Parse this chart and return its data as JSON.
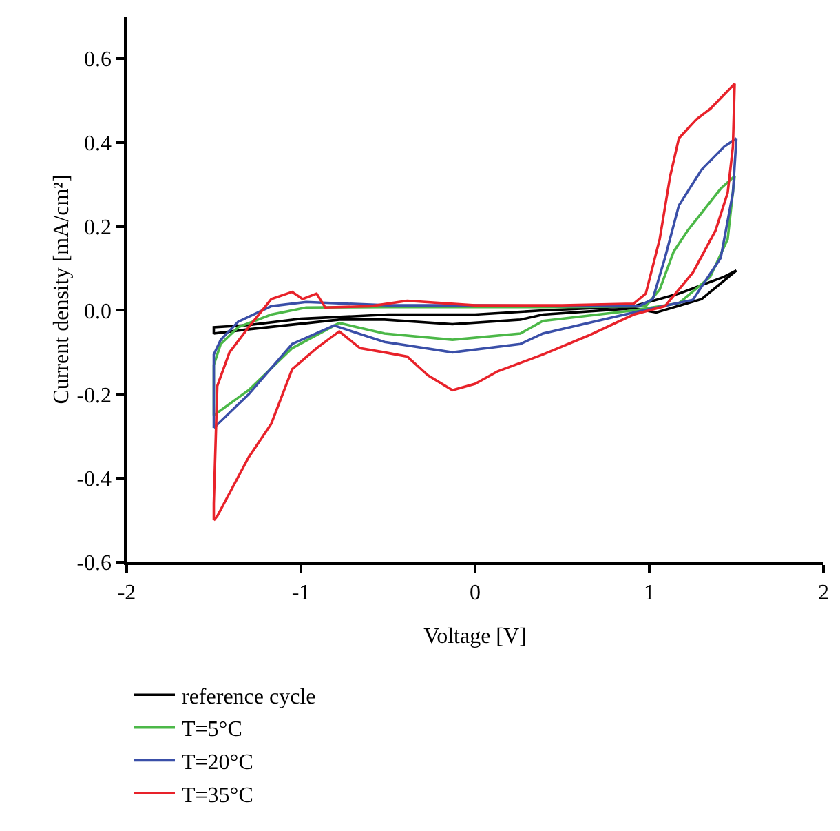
{
  "chart_data": {
    "type": "line",
    "xlabel": "Voltage [V]",
    "ylabel": "Current density [mA/cm²]",
    "xlim": [
      -2,
      2
    ],
    "ylim": [
      -0.6,
      0.7
    ],
    "xticks": [
      -2,
      -1,
      0,
      1,
      2
    ],
    "yticks": [
      -0.6,
      -0.4,
      -0.2,
      {
        "value": 0,
        "label": "0.0"
      },
      0.2,
      0.4,
      0.6
    ],
    "grid": false,
    "legend": "bottom",
    "marker": "none",
    "line_style": "solid",
    "series": [
      {
        "name": "reference cycle",
        "color": "#000000",
        "x": [
          -1.5,
          -1.3,
          -0.78,
          -0.52,
          -0.13,
          0.26,
          0.39,
          0.91,
          1.04,
          1.3,
          1.5
        ],
        "values": [
          -0.055,
          -0.045,
          -0.022,
          -0.022,
          -0.033,
          -0.022,
          -0.01,
          0.005,
          -0.005,
          0.027,
          0.095
        ]
      },
      {
        "color": "#000000",
        "x": [
          1.5,
          1.43,
          1.3,
          1.17,
          0.91,
          0.39,
          0,
          -0.5,
          -1.0,
          -1.3,
          -1.5,
          -1.5
        ],
        "values": [
          0.095,
          0.08,
          0.06,
          0.04,
          0.01,
          0.0,
          -0.01,
          -0.01,
          -0.02,
          -0.035,
          -0.04,
          -0.055
        ]
      },
      {
        "name": "T=5°C",
        "color": "#4cb848",
        "x": [
          -1.5,
          -1.3,
          -1.05,
          -0.78,
          -0.52,
          -0.13,
          0.26,
          0.39,
          0.91,
          1.17,
          1.35,
          1.45,
          1.49
        ],
        "values": [
          -0.25,
          -0.19,
          -0.09,
          -0.03,
          -0.055,
          -0.07,
          -0.055,
          -0.025,
          0.0,
          0.017,
          0.08,
          0.17,
          0.32
        ]
      },
      {
        "color": "#4cb848",
        "x": [
          1.49,
          1.41,
          1.22,
          1.14,
          1.06,
          0.98,
          0.5,
          0,
          -0.5,
          -0.97,
          -1.17,
          -1.36,
          -1.46,
          -1.5,
          -1.5
        ],
        "values": [
          0.32,
          0.29,
          0.19,
          0.14,
          0.05,
          0.01,
          0.008,
          0.008,
          0.008,
          0.007,
          -0.01,
          -0.04,
          -0.08,
          -0.13,
          -0.25
        ]
      },
      {
        "name": "T=20°C",
        "color": "#3a4fa8",
        "x": [
          -1.5,
          -1.3,
          -1.05,
          -0.81,
          -0.52,
          -0.13,
          0.26,
          0.39,
          0.91,
          1.25,
          1.41,
          1.48,
          1.5
        ],
        "values": [
          -0.28,
          -0.2,
          -0.08,
          -0.036,
          -0.075,
          -0.1,
          -0.08,
          -0.055,
          -0.005,
          0.025,
          0.125,
          0.28,
          0.41
        ]
      },
      {
        "color": "#3a4fa8",
        "x": [
          1.5,
          1.43,
          1.3,
          1.17,
          1.09,
          1.02,
          0.94,
          0.5,
          0,
          -0.5,
          -0.97,
          -1.17,
          -1.36,
          -1.46,
          -1.5,
          -1.5,
          -1.5
        ],
        "values": [
          0.41,
          0.39,
          0.335,
          0.25,
          0.125,
          0.027,
          0.01,
          0.01,
          0.012,
          0.012,
          0.02,
          0.01,
          -0.027,
          -0.07,
          -0.105,
          -0.2,
          -0.28
        ]
      },
      {
        "name": "T=35°C",
        "color": "#e8222a",
        "x": [
          -1.5,
          -1.48,
          -1.3,
          -1.17,
          -1.05,
          -0.91,
          -0.78,
          -0.66,
          -0.52,
          -0.39,
          -0.27,
          -0.13,
          0,
          0.13,
          0.39,
          0.65,
          0.91,
          1.09,
          1.25,
          1.38,
          1.45,
          1.48,
          1.49
        ],
        "values": [
          -0.5,
          -0.49,
          -0.35,
          -0.27,
          -0.14,
          -0.09,
          -0.05,
          -0.09,
          -0.1,
          -0.11,
          -0.155,
          -0.19,
          -0.175,
          -0.145,
          -0.105,
          -0.06,
          -0.01,
          0.01,
          0.09,
          0.19,
          0.28,
          0.39,
          0.54
        ]
      },
      {
        "color": "#e8222a",
        "x": [
          1.49,
          1.35,
          1.27,
          1.17,
          1.12,
          1.06,
          0.98,
          0.91,
          0.5,
          0,
          -0.39,
          -0.6,
          -0.86,
          -0.91,
          -0.99,
          -1.05,
          -1.17,
          -1.3,
          -1.41,
          -1.48,
          -1.5,
          -1.5
        ],
        "values": [
          0.54,
          0.48,
          0.455,
          0.41,
          0.32,
          0.17,
          0.04,
          0.016,
          0.012,
          0.012,
          0.023,
          0.01,
          0.007,
          0.04,
          0.027,
          0.044,
          0.027,
          -0.04,
          -0.1,
          -0.18,
          -0.46,
          -0.5
        ]
      }
    ]
  }
}
